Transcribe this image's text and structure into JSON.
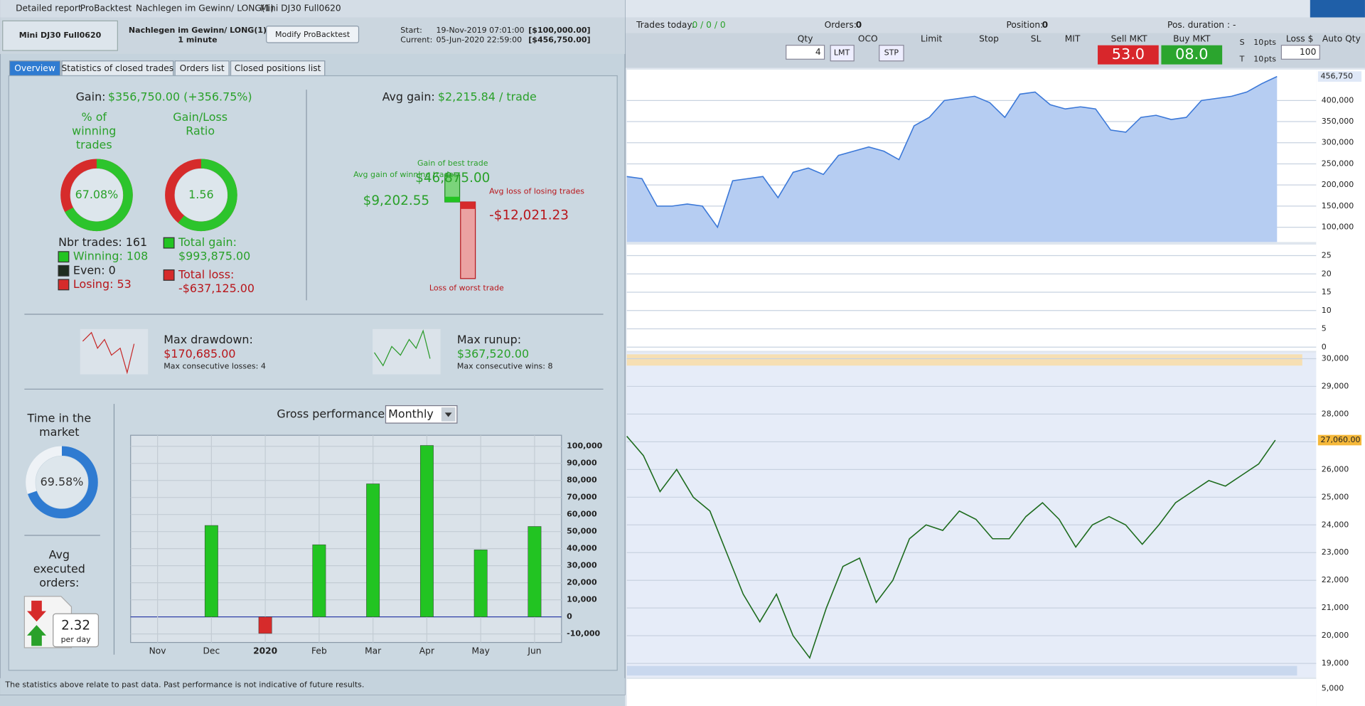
{
  "window": {
    "title": "Detailed report",
    "crumbs": [
      "ProBacktest",
      "Nachlegen im Gewinn/ LONG(1)",
      "Mini DJ30 Full0620"
    ]
  },
  "header": {
    "instrument": "Mini DJ30 Full0620",
    "strategy": "Nachlegen im Gewinn/ LONG(1)",
    "timeframe": "1 minute",
    "button": "Modify ProBacktest",
    "start_label": "Start:",
    "start": "19-Nov-2019 07:01:00",
    "start_capital": "[$100,000.00]",
    "current_label": "Current:",
    "current": "05-Jun-2020 22:59:00",
    "current_capital": "[$456,750.00]"
  },
  "tabs": [
    "Overview",
    "Statistics of closed trades",
    "Orders list",
    "Closed positions list"
  ],
  "overview": {
    "gain_label": "Gain:",
    "gain": "$356,750.00 (+356.75%)",
    "winning_title": [
      "% of",
      "winning",
      "trades"
    ],
    "winning_pct": {
      "value": 67.08,
      "label": "67.08%"
    },
    "ratio_title": [
      "Gain/Loss",
      "Ratio"
    ],
    "ratio": 1.56,
    "nbr_trades": "Nbr trades: 161",
    "winning": "Winning: 108",
    "even": "Even: 0",
    "losing": "Losing: 53",
    "total_gain_label": "Total gain:",
    "total_gain": "$993,875.00",
    "total_loss_label": "Total loss:",
    "total_loss": "-$637,125.00",
    "avg_gain_label": "Avg gain:",
    "avg_gain": "$2,215.84 / trade",
    "best_label": "Gain of best trade",
    "best": "$46,875.00",
    "avg_win_label": "Avg gain of winning trades",
    "avg_win": "$9,202.55",
    "avg_loss_label": "Avg loss of losing trades",
    "avg_loss": "-$12,021.23",
    "worst_label": "Loss of worst trade",
    "drawdown_label": "Max drawdown:",
    "drawdown": "$170,685.00",
    "max_losses": "Max consecutive losses: 4",
    "runup_label": "Max runup:",
    "runup": "$367,520.00",
    "max_wins": "Max consecutive wins: 8",
    "time_title": [
      "Time in the",
      "market"
    ],
    "time_pct": {
      "value": 69.58,
      "label": "69.58%"
    },
    "orders_title": [
      "Avg",
      "executed",
      "orders:"
    ],
    "orders": "2.32",
    "orders_unit": "per day",
    "footer": "The statistics above relate to past data. Past performance is not indicative of future results."
  },
  "chart_data": {
    "type": "bar",
    "title": "Gross performance",
    "period": "Monthly",
    "categories": [
      "Nov",
      "Dec",
      "2020",
      "Feb",
      "Mar",
      "Apr",
      "May",
      "Jun"
    ],
    "values": [
      0,
      53600,
      -9700,
      42300,
      78000,
      100500,
      39300,
      53000
    ],
    "colors": {
      "positive": "#22c422",
      "negative": "#d62b2b"
    },
    "ylim": [
      -15000,
      108000
    ],
    "yticks": [
      {
        "value": -10000,
        "label": "-10,000"
      },
      0,
      {
        "value": 10000,
        "label": "10,000"
      },
      {
        "value": 20000,
        "label": "20,000"
      },
      {
        "value": 30000,
        "label": "30,000"
      },
      {
        "value": 40000,
        "label": "40,000"
      },
      {
        "value": 50000,
        "label": "50,000"
      },
      {
        "value": 60000,
        "label": "60,000"
      },
      {
        "value": 70000,
        "label": "70,000"
      },
      {
        "value": 80000,
        "label": "80,000"
      },
      {
        "value": 90000,
        "label": "90,000"
      },
      {
        "value": 100000,
        "label": "100,000"
      }
    ],
    "grid": true
  },
  "platform": {
    "toolbar": {
      "trades_today": "Trades today:",
      "trades_val": "0 / 0 / 0",
      "orders": "Orders:",
      "orders_val": "0",
      "position": "Position:",
      "position_val": "0",
      "duration": "Pos. duration : -",
      "qty": "Qty",
      "qty_val": "4",
      "oco": "OCO",
      "lmt": "LMT",
      "stp": "STP",
      "limit": "Limit",
      "stop": "Stop",
      "sl": "SL",
      "mit": "MIT",
      "sell": "Sell MKT",
      "sell_px": "53.0",
      "buy": "Buy MKT",
      "buy_px": "08.0",
      "s": "S",
      "t": "T",
      "s_val": "10",
      "t_val": "10",
      "pts": "pts",
      "loss": "Loss $",
      "loss_val": "100",
      "auto": "Auto Qty"
    },
    "equity": {
      "values": [
        220000,
        215000,
        150000,
        150000,
        155000,
        150000,
        100000,
        210000,
        215000,
        220000,
        170000,
        230000,
        240000,
        225000,
        270000,
        280000,
        290000,
        280000,
        260000,
        340000,
        360000,
        400000,
        405000,
        410000,
        395000,
        360000,
        415000,
        420000,
        390000,
        380000,
        385000,
        380000,
        330000,
        325000,
        360000,
        365000,
        355000,
        360000,
        400000,
        405000,
        410000,
        420000,
        440000,
        456750
      ],
      "color": "#3b78d8",
      "ylim": [
        65000,
        473000
      ],
      "yticks": [
        {
          "value": 100000,
          "label": "100,000"
        },
        {
          "value": 150000,
          "label": "150,000"
        },
        {
          "value": 200000,
          "label": "200,000"
        },
        {
          "value": 250000,
          "label": "250,000"
        },
        {
          "value": 300000,
          "label": "300,000"
        },
        {
          "value": 350000,
          "label": "350,000"
        },
        {
          "value": 400000,
          "label": "400,000"
        }
      ],
      "last": {
        "value": 456750,
        "label": "456,750"
      }
    },
    "trades": {
      "ylim": [
        -1,
        28
      ],
      "yticks": [
        0,
        5,
        10,
        15,
        20,
        25
      ]
    },
    "price": {
      "values": [
        27200,
        26500,
        25200,
        26000,
        25000,
        24500,
        23000,
        21500,
        20500,
        21500,
        20000,
        19200,
        21000,
        22500,
        22800,
        21200,
        22000,
        23500,
        24000,
        23800,
        24500,
        24200,
        23500,
        23500,
        24300,
        24800,
        24200,
        23200,
        24000,
        24300,
        24000,
        23300,
        24000,
        24800,
        25200,
        25600,
        25400,
        25800,
        26200,
        27060
      ],
      "color": "#1d6b1d",
      "ylim": [
        18500,
        30220
      ],
      "yticks": [
        {
          "value": 19000,
          "label": "19,000"
        },
        {
          "value": 20000,
          "label": "20,000"
        },
        {
          "value": 21000,
          "label": "21,000"
        },
        {
          "value": 22000,
          "label": "22,000"
        },
        {
          "value": 23000,
          "label": "23,000"
        },
        {
          "value": 24000,
          "label": "24,000"
        },
        {
          "value": 25000,
          "label": "25,000"
        },
        {
          "value": 26000,
          "label": "26,000"
        },
        {
          "value": 27000,
          "label": "27,000"
        },
        {
          "value": 28000,
          "label": "28,000"
        },
        {
          "value": 29000,
          "label": "29,000"
        },
        {
          "value": 30000,
          "label": "30,000"
        }
      ],
      "last": {
        "value": 27060,
        "label": "27,060.00"
      }
    },
    "volume_tick": {
      "value": 5000,
      "label": "5,000"
    }
  }
}
